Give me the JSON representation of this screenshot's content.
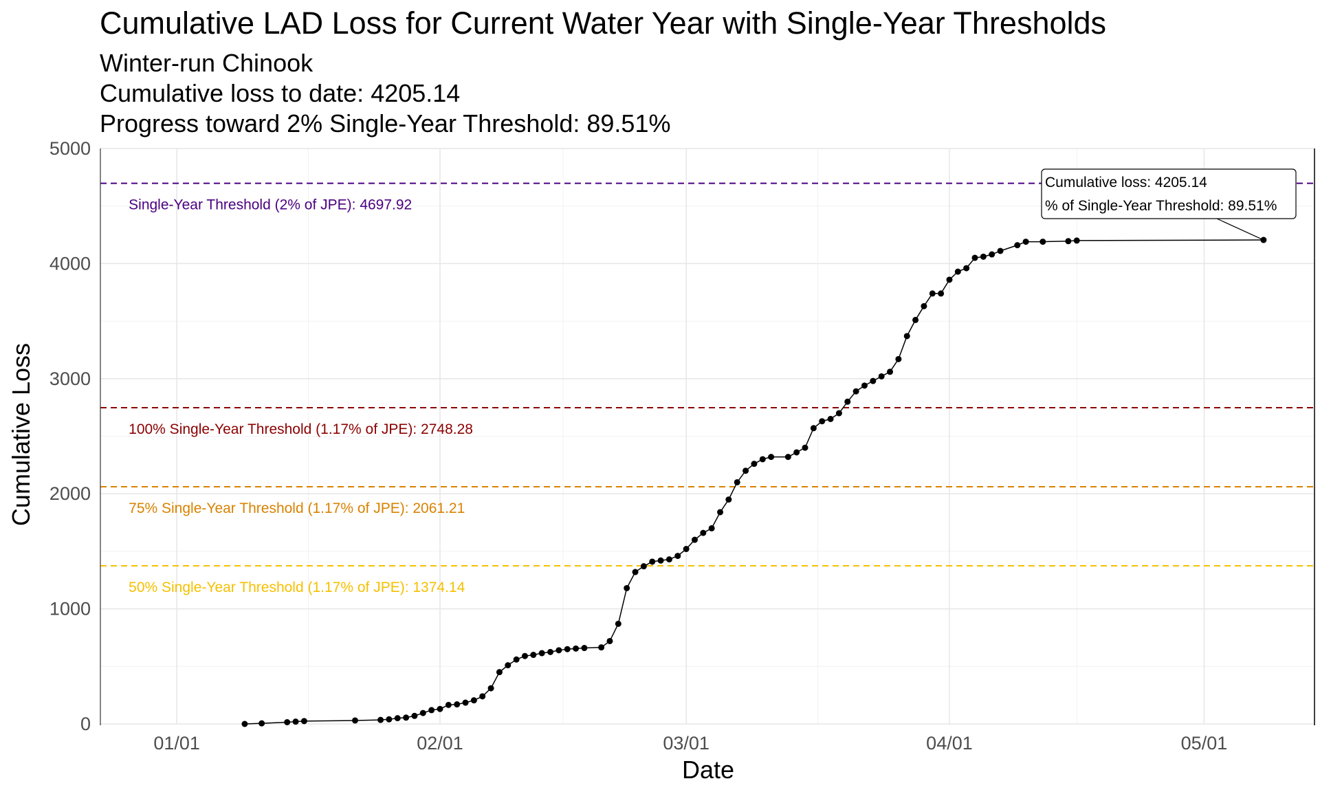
{
  "chart_data": {
    "type": "line",
    "title": "Cumulative LAD Loss for Current Water Year with Single-Year Thresholds",
    "subtitles": [
      "Winter-run Chinook",
      "Cumulative loss to date: 4205.14",
      "Progress toward 2% Single-Year Threshold: 89.51%"
    ],
    "xlabel": "Date",
    "ylabel": "Cumulative Loss",
    "xlim": [
      "2023-12-23",
      "2024-05-14"
    ],
    "ylim": [
      0,
      5000
    ],
    "x_ticks": [
      {
        "date": "2024-01-01",
        "label": "01/01"
      },
      {
        "date": "2024-02-01",
        "label": "02/01"
      },
      {
        "date": "2024-03-01",
        "label": "03/01"
      },
      {
        "date": "2024-04-01",
        "label": "04/01"
      },
      {
        "date": "2024-05-01",
        "label": "05/01"
      }
    ],
    "y_ticks": [
      0,
      1000,
      2000,
      3000,
      4000,
      5000
    ],
    "grid": true,
    "thresholds": [
      {
        "value": 4697.92,
        "label": "Single-Year Threshold (2% of JPE): 4697.92",
        "color": "#4B0082"
      },
      {
        "value": 2748.28,
        "label": "100% Single-Year Threshold (1.17% of JPE): 2748.28",
        "color": "#8B0000"
      },
      {
        "value": 2061.21,
        "label": "75% Single-Year Threshold (1.17% of JPE): 2061.21",
        "color": "#D98200"
      },
      {
        "value": 1374.14,
        "label": "50% Single-Year Threshold (1.17% of JPE): 1374.14",
        "color": "#F5C000"
      }
    ],
    "annotation": {
      "lines": [
        "Cumulative loss: 4205.14",
        "% of Single-Year Threshold: 89.51%"
      ],
      "x": "2024-05-08",
      "y": 4205.14
    },
    "series": [
      {
        "points": [
          [
            "2024-01-09",
            0
          ],
          [
            "2024-01-11",
            5
          ],
          [
            "2024-01-14",
            15
          ],
          [
            "2024-01-15",
            20
          ],
          [
            "2024-01-16",
            25
          ],
          [
            "2024-01-22",
            30
          ],
          [
            "2024-01-25",
            35
          ],
          [
            "2024-01-26",
            40
          ],
          [
            "2024-01-27",
            50
          ],
          [
            "2024-01-28",
            55
          ],
          [
            "2024-01-29",
            70
          ],
          [
            "2024-01-30",
            95
          ],
          [
            "2024-01-31",
            120
          ],
          [
            "2024-02-01",
            130
          ],
          [
            "2024-02-02",
            165
          ],
          [
            "2024-02-03",
            170
          ],
          [
            "2024-02-04",
            185
          ],
          [
            "2024-02-05",
            205
          ],
          [
            "2024-02-06",
            240
          ],
          [
            "2024-02-07",
            310
          ],
          [
            "2024-02-08",
            450
          ],
          [
            "2024-02-09",
            510
          ],
          [
            "2024-02-10",
            560
          ],
          [
            "2024-02-11",
            590
          ],
          [
            "2024-02-12",
            600
          ],
          [
            "2024-02-13",
            615
          ],
          [
            "2024-02-14",
            625
          ],
          [
            "2024-02-15",
            640
          ],
          [
            "2024-02-16",
            650
          ],
          [
            "2024-02-17",
            655
          ],
          [
            "2024-02-18",
            660
          ],
          [
            "2024-02-20",
            665
          ],
          [
            "2024-02-21",
            720
          ],
          [
            "2024-02-22",
            870
          ],
          [
            "2024-02-23",
            1180
          ],
          [
            "2024-02-24",
            1320
          ],
          [
            "2024-02-25",
            1370
          ],
          [
            "2024-02-26",
            1410
          ],
          [
            "2024-02-27",
            1420
          ],
          [
            "2024-02-28",
            1430
          ],
          [
            "2024-02-29",
            1460
          ],
          [
            "2024-03-01",
            1520
          ],
          [
            "2024-03-02",
            1600
          ],
          [
            "2024-03-03",
            1660
          ],
          [
            "2024-03-04",
            1700
          ],
          [
            "2024-03-05",
            1840
          ],
          [
            "2024-03-06",
            1950
          ],
          [
            "2024-03-07",
            2100
          ],
          [
            "2024-03-08",
            2200
          ],
          [
            "2024-03-09",
            2260
          ],
          [
            "2024-03-10",
            2300
          ],
          [
            "2024-03-11",
            2320
          ],
          [
            "2024-03-13",
            2320
          ],
          [
            "2024-03-14",
            2360
          ],
          [
            "2024-03-15",
            2400
          ],
          [
            "2024-03-16",
            2570
          ],
          [
            "2024-03-17",
            2630
          ],
          [
            "2024-03-18",
            2650
          ],
          [
            "2024-03-19",
            2700
          ],
          [
            "2024-03-20",
            2800
          ],
          [
            "2024-03-21",
            2890
          ],
          [
            "2024-03-22",
            2940
          ],
          [
            "2024-03-23",
            2980
          ],
          [
            "2024-03-24",
            3020
          ],
          [
            "2024-03-25",
            3060
          ],
          [
            "2024-03-26",
            3170
          ],
          [
            "2024-03-27",
            3370
          ],
          [
            "2024-03-28",
            3510
          ],
          [
            "2024-03-29",
            3630
          ],
          [
            "2024-03-30",
            3740
          ],
          [
            "2024-03-31",
            3740
          ],
          [
            "2024-04-01",
            3860
          ],
          [
            "2024-04-02",
            3930
          ],
          [
            "2024-04-03",
            3960
          ],
          [
            "2024-04-04",
            4050
          ],
          [
            "2024-04-05",
            4060
          ],
          [
            "2024-04-06",
            4080
          ],
          [
            "2024-04-07",
            4110
          ],
          [
            "2024-04-09",
            4160
          ],
          [
            "2024-04-10",
            4190
          ],
          [
            "2024-04-12",
            4190
          ],
          [
            "2024-04-15",
            4195
          ],
          [
            "2024-04-16",
            4200
          ],
          [
            "2024-05-08",
            4205.14
          ]
        ]
      }
    ]
  }
}
